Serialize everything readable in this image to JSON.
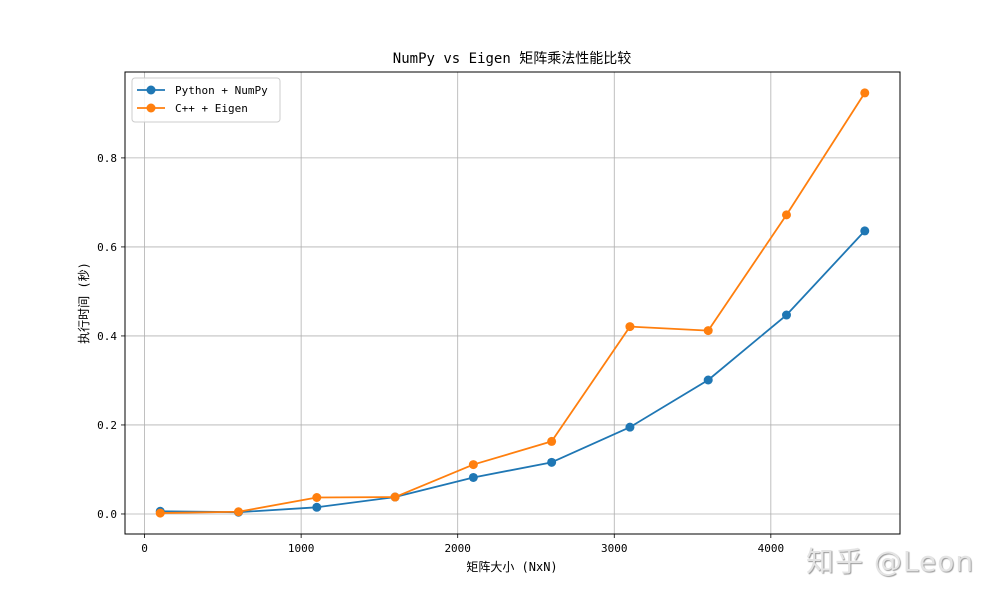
{
  "chart_data": {
    "type": "line",
    "title": "NumPy vs Eigen 矩阵乘法性能比较",
    "xlabel": "矩阵大小 (NxN)",
    "ylabel": "执行时间 (秒)",
    "x": [
      100,
      600,
      1100,
      1600,
      2100,
      2600,
      3100,
      3600,
      4100,
      4600
    ],
    "series": [
      {
        "name": "Python + NumPy",
        "color": "#1f77b4",
        "marker": "circle",
        "values": [
          0.006,
          0.004,
          0.015,
          0.038,
          0.082,
          0.116,
          0.195,
          0.301,
          0.447,
          0.636
        ]
      },
      {
        "name": "C++ + Eigen",
        "color": "#ff7f0e",
        "marker": "circle",
        "values": [
          0.002,
          0.005,
          0.037,
          0.038,
          0.111,
          0.163,
          0.421,
          0.412,
          0.672,
          0.946
        ]
      }
    ],
    "xticks": [
      0,
      1000,
      2000,
      3000,
      4000
    ],
    "yticks": [
      0.0,
      0.2,
      0.4,
      0.6,
      0.8
    ],
    "xtick_labels": [
      "0",
      "1000",
      "2000",
      "3000",
      "4000"
    ],
    "ytick_labels": [
      "0.0",
      "0.2",
      "0.4",
      "0.6",
      "0.8"
    ],
    "xlim": [
      -125,
      4825
    ],
    "ylim": [
      -0.045,
      0.993
    ],
    "grid": true,
    "legend_position": "upper left"
  },
  "watermark": "知乎 @Leon"
}
